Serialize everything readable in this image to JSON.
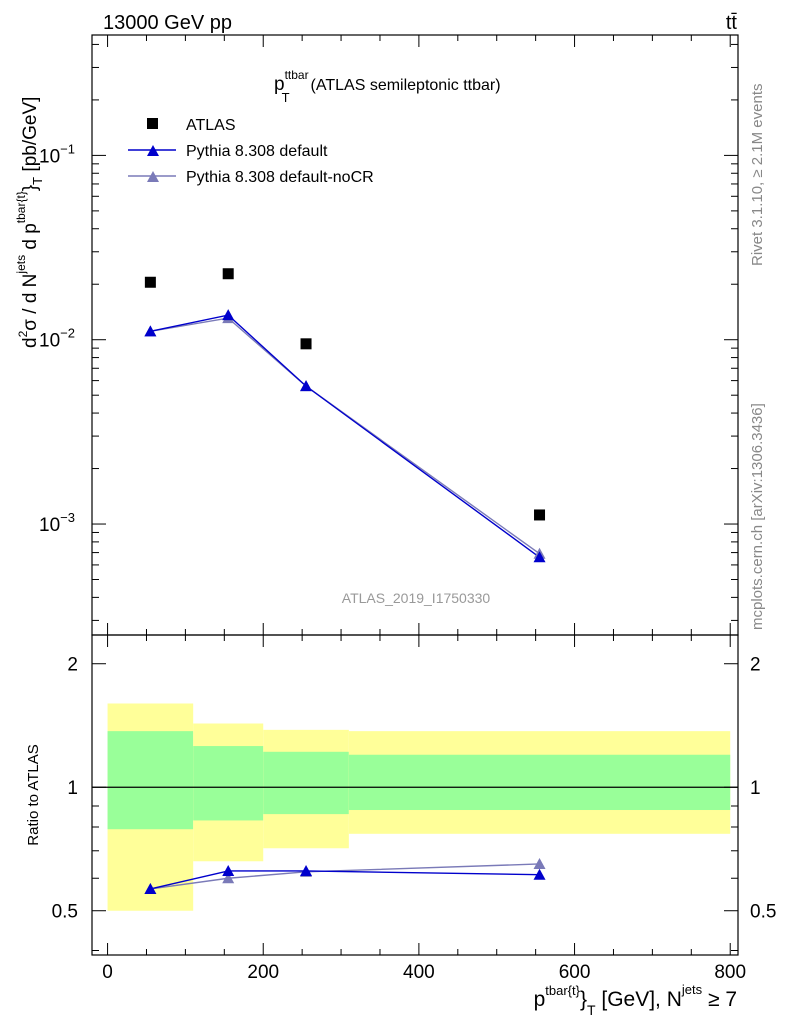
{
  "header": {
    "energy_label": "13000 GeV pp",
    "process_label": "tt̄"
  },
  "side_labels": {
    "rivet": "Rivet 3.1.10, ≥ 2.1M events",
    "source": "mcplots.cern.ch [arXiv:1306.3436]"
  },
  "main_plot": {
    "title_main": "p",
    "title_sup": "ttbar",
    "title_sub": "T",
    "title_rest": "(ATLAS semileptonic ttbar)",
    "analysis_label": "ATLAS_2019_I1750330",
    "ylabel_parts": {
      "d2": "d",
      "sup2": "2",
      "sigma": "σ  /  d N",
      "sup_jets": "jets",
      "dp": " d p",
      "sup_tbar": "tbar{t}",
      "sub_T": "}",
      "sub_T2": "T",
      "unit": " [pb/GeV]"
    },
    "y_ticks": [
      {
        "value": 0.1,
        "base": "10",
        "exp": "−1"
      },
      {
        "value": 0.01,
        "base": "10",
        "exp": "−2"
      },
      {
        "value": 0.001,
        "base": "10",
        "exp": "−3"
      }
    ]
  },
  "ratio_plot": {
    "ylabel": "Ratio to ATLAS",
    "y_ticks": [
      {
        "value": 0.5,
        "label": "0.5"
      },
      {
        "value": 1,
        "label": "1"
      },
      {
        "value": 2,
        "label": "2"
      }
    ]
  },
  "x_axis": {
    "ticks": [
      {
        "value": 0,
        "label": "0"
      },
      {
        "value": 200,
        "label": "200"
      },
      {
        "value": 400,
        "label": "400"
      },
      {
        "value": 600,
        "label": "600"
      },
      {
        "value": 800,
        "label": "800"
      }
    ],
    "label_p": "p",
    "label_sup": "tbar{t}",
    "label_brace": "}",
    "label_sub": "T",
    "label_rest": " [GeV], N",
    "label_sup2": "jets",
    "label_end": " ≥ 7"
  },
  "colors": {
    "data": "#000000",
    "default": "#0000cc",
    "nocr": "#7a7ab8",
    "band_outer": "#ffff99",
    "band_inner": "#99ff99"
  },
  "chart_data": {
    "type": "scatter",
    "x_scale": "linear",
    "y_scale": "log",
    "xlim": [
      -20,
      810
    ],
    "ylim": [
      0.00025,
      0.45
    ],
    "ratio_ylim": [
      0.39,
      2.35
    ],
    "x": [
      55,
      155,
      255,
      555
    ],
    "bins": [
      [
        0,
        110
      ],
      [
        110,
        200
      ],
      [
        200,
        310
      ],
      [
        310,
        800
      ]
    ],
    "series": [
      {
        "name": "ATLAS",
        "marker": "square",
        "values": [
          0.0205,
          0.0228,
          0.0095,
          0.00112
        ]
      },
      {
        "name": "Pythia 8.308 default",
        "marker": "triangle",
        "values": [
          0.0111,
          0.0136,
          0.0056,
          0.00066
        ]
      },
      {
        "name": "Pythia 8.308 default-noCR",
        "marker": "triangle",
        "values": [
          0.0111,
          0.0131,
          0.0056,
          0.00069
        ]
      }
    ],
    "ratio_series": [
      {
        "name": "Pythia 8.308 default",
        "values": [
          0.565,
          0.625,
          0.625,
          0.612
        ]
      },
      {
        "name": "Pythia 8.308 default-noCR",
        "values": [
          0.565,
          0.6,
          0.622,
          0.65
        ]
      }
    ],
    "ratio_bands": {
      "outer": [
        [
          0.5,
          1.6
        ],
        [
          0.66,
          1.43
        ],
        [
          0.71,
          1.38
        ],
        [
          0.77,
          1.37
        ]
      ],
      "inner": [
        [
          0.79,
          1.37
        ],
        [
          0.83,
          1.26
        ],
        [
          0.86,
          1.22
        ],
        [
          0.88,
          1.2
        ]
      ]
    }
  }
}
